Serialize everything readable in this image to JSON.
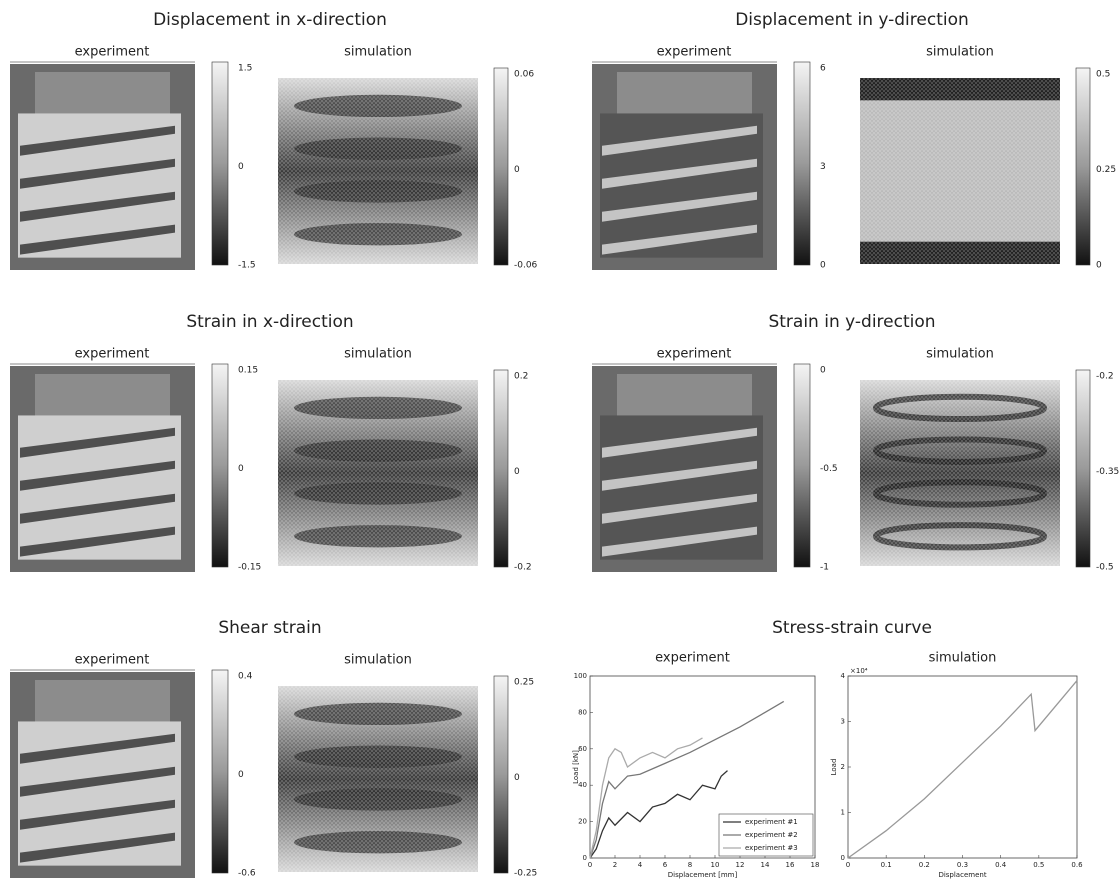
{
  "panels": [
    {
      "title": "Displacement in x-direction",
      "experiment": {
        "label": "experiment",
        "colorbar": [
          "1.5",
          "0",
          "-1.5"
        ]
      },
      "simulation": {
        "label": "simulation",
        "colorbar": [
          "0.06",
          "0",
          "-0.06"
        ]
      }
    },
    {
      "title": "Displacement in y-direction",
      "experiment": {
        "label": "experiment",
        "colorbar": [
          "6",
          "3",
          "0"
        ]
      },
      "simulation": {
        "label": "simulation",
        "colorbar": [
          "0.5",
          "0.25",
          "0"
        ]
      }
    },
    {
      "title": "Strain in x-direction",
      "experiment": {
        "label": "experiment",
        "colorbar": [
          "0.15",
          "0",
          "-0.15"
        ]
      },
      "simulation": {
        "label": "simulation",
        "colorbar": [
          "0.2",
          "0",
          "-0.2"
        ]
      }
    },
    {
      "title": "Strain in y-direction",
      "experiment": {
        "label": "experiment",
        "colorbar": [
          "0",
          "-0.5",
          "-1"
        ]
      },
      "simulation": {
        "label": "simulation",
        "colorbar": [
          "-0.2",
          "-0.35",
          "-0.5"
        ]
      }
    },
    {
      "title": "Shear strain",
      "experiment": {
        "label": "experiment",
        "colorbar": [
          "0.4",
          "0",
          "-0.6"
        ]
      },
      "simulation": {
        "label": "simulation",
        "colorbar": [
          "0.25",
          "0",
          "-0.25"
        ]
      }
    }
  ],
  "stress_strain": {
    "title": "Stress-strain curve",
    "experiment": {
      "label": "experiment",
      "type": "line",
      "x_label": "Displacement [mm]",
      "y_label": "Load [kN]",
      "xlim": [
        0,
        18
      ],
      "ylim": [
        0,
        100
      ],
      "xticks": [
        0,
        2,
        4,
        6,
        8,
        10,
        12,
        14,
        16,
        18
      ],
      "yticks": [
        0,
        20,
        40,
        60,
        80,
        100
      ],
      "series": [
        {
          "name": "experiment #1",
          "color": "#333333",
          "x": [
            0,
            0.5,
            1,
            1.5,
            2,
            3,
            4,
            5,
            6,
            7,
            8,
            9,
            10,
            10.5,
            11
          ],
          "values": [
            0,
            5,
            15,
            22,
            18,
            25,
            20,
            28,
            30,
            35,
            32,
            40,
            38,
            45,
            48
          ]
        },
        {
          "name": "experiment #2",
          "color": "#777777",
          "x": [
            0,
            0.5,
            1,
            1.5,
            2,
            3,
            4,
            6,
            8,
            10,
            12,
            14,
            15.5
          ],
          "values": [
            0,
            10,
            30,
            42,
            38,
            45,
            46,
            52,
            58,
            65,
            72,
            80,
            86
          ]
        },
        {
          "name": "experiment #3",
          "color": "#aaaaaa",
          "x": [
            0,
            0.5,
            1,
            1.5,
            2,
            2.5,
            3,
            4,
            5,
            6,
            7,
            8,
            9
          ],
          "values": [
            0,
            15,
            40,
            55,
            60,
            58,
            50,
            55,
            58,
            55,
            60,
            62,
            66
          ]
        }
      ]
    },
    "simulation": {
      "label": "simulation",
      "type": "line",
      "x_label": "Displacement",
      "y_label": "Load",
      "y_multiplier": "×10⁴",
      "xlim": [
        0,
        0.6
      ],
      "ylim": [
        0,
        4
      ],
      "xticks": [
        0,
        0.1,
        0.2,
        0.3,
        0.4,
        0.5,
        0.6
      ],
      "yticks": [
        0,
        1,
        2,
        3,
        4
      ],
      "series": [
        {
          "color": "#999999",
          "x": [
            0,
            0.1,
            0.2,
            0.3,
            0.4,
            0.48,
            0.49,
            0.6
          ],
          "values": [
            0,
            0.6,
            1.3,
            2.1,
            2.9,
            3.6,
            2.8,
            3.9
          ]
        }
      ]
    }
  }
}
